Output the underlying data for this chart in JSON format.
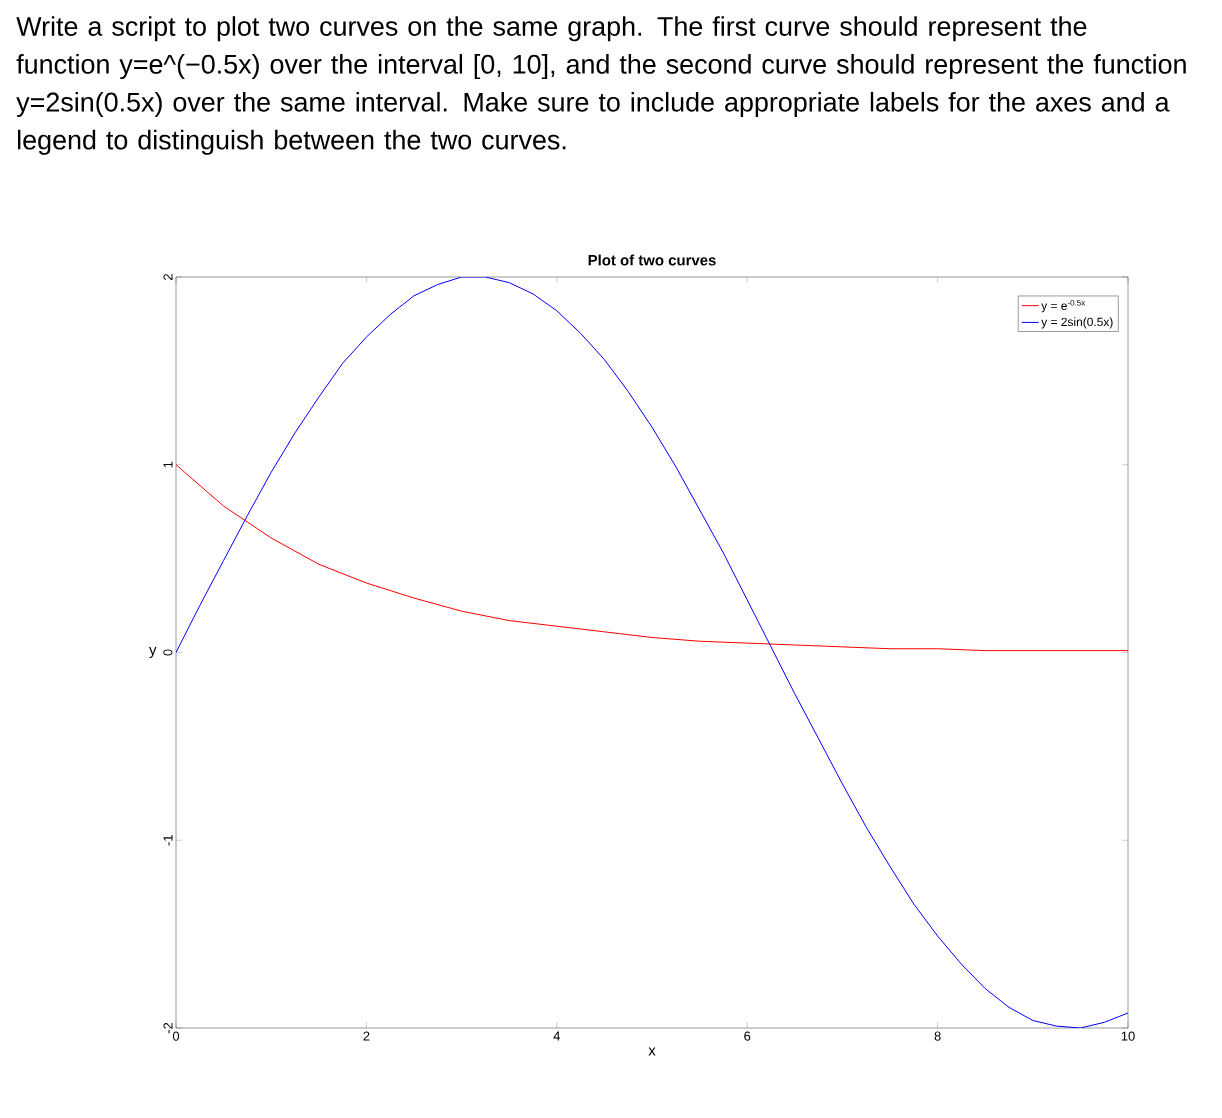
{
  "chart_data": {
    "type": "line",
    "title": "Plot of two curves",
    "xlabel": "x",
    "ylabel": "y",
    "annotations": [
      "Write a script to plot two curves on the same graph. The first curve should represent the function y=e^(−0.5x) over the interval [0, 10], and the second curve should represent the function y=2sin(0.5x) over the same interval. Make sure to include appropriate labels for the axes and a legend to distinguish between the two curves."
    ],
    "xlim": [
      0,
      10
    ],
    "ylim": [
      -2,
      2
    ],
    "xticks": [
      0,
      2,
      4,
      6,
      8,
      10
    ],
    "yticks": [
      -2,
      -1,
      0,
      1,
      2
    ],
    "grid": false,
    "legend": "top right",
    "marker": "none",
    "line_style": "solid",
    "series": [
      {
        "name": "y = e$^{-0.5x}$",
        "color": "#ff0000",
        "x": [
          0,
          0.5,
          1,
          1.5,
          2,
          2.5,
          3,
          3.5,
          4,
          4.5,
          5,
          5.5,
          6,
          6.5,
          7,
          7.5,
          8,
          8.5,
          9,
          9.5,
          10
        ],
        "values": [
          1.0,
          0.78,
          0.61,
          0.47,
          0.37,
          0.29,
          0.22,
          0.17,
          0.14,
          0.11,
          0.08,
          0.06,
          0.05,
          0.04,
          0.03,
          0.02,
          0.02,
          0.01,
          0.01,
          0.01,
          0.01
        ]
      },
      {
        "name": "y = 2sin(0.5x)",
        "color": "#0000ff",
        "x": [
          0,
          0.25,
          0.5,
          0.75,
          1,
          1.25,
          1.5,
          1.75,
          2,
          2.25,
          2.5,
          2.75,
          3,
          3.25,
          3.5,
          3.75,
          4,
          4.25,
          4.5,
          4.75,
          5,
          5.25,
          5.5,
          5.75,
          6,
          6.25,
          6.5,
          6.75,
          7,
          7.25,
          7.5,
          7.75,
          8,
          8.25,
          8.5,
          8.75,
          9,
          9.25,
          9.5,
          9.75,
          10
        ],
        "values": [
          0,
          0.25,
          0.49,
          0.73,
          0.96,
          1.17,
          1.36,
          1.54,
          1.68,
          1.8,
          1.9,
          1.96,
          2.0,
          2.0,
          1.97,
          1.91,
          1.82,
          1.7,
          1.56,
          1.39,
          1.2,
          0.99,
          0.76,
          0.53,
          0.28,
          0.03,
          -0.22,
          -0.46,
          -0.7,
          -0.93,
          -1.14,
          -1.34,
          -1.51,
          -1.66,
          -1.79,
          -1.89,
          -1.96,
          -1.99,
          -2.0,
          -1.97,
          -1.92
        ]
      }
    ]
  }
}
